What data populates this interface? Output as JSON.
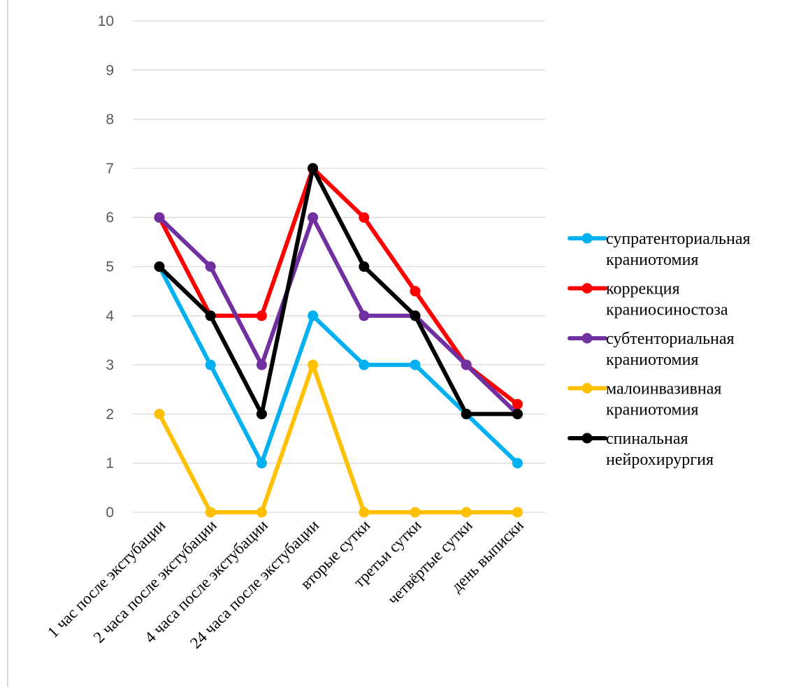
{
  "chart_data": {
    "type": "line",
    "title": "",
    "xlabel": "",
    "ylabel": "",
    "ylim": [
      0,
      10
    ],
    "yticks": [
      "0",
      "1",
      "2",
      "3",
      "4",
      "5",
      "6",
      "7",
      "8",
      "9",
      "10"
    ],
    "grid": true,
    "legend_position": "right",
    "categories": [
      "1 час после экстубации",
      "2 часа после экстубации",
      "4 часа после экстубации",
      "24 часа после экстубации",
      "вторые сутки",
      "третьи сутки",
      "четвёртые сутки",
      "день выписки"
    ],
    "series": [
      {
        "name": [
          "супратенториальная",
          "краниотомия"
        ],
        "color": "#00b0f0",
        "values": [
          5,
          3,
          1,
          4,
          3,
          3,
          2,
          1
        ]
      },
      {
        "name": [
          "коррекция",
          "краниосиностоза"
        ],
        "color": "#ff0000",
        "values": [
          6,
          4,
          4,
          7,
          6,
          4.5,
          3,
          2.2
        ]
      },
      {
        "name": [
          "субтенториальная",
          "краниотомия"
        ],
        "color": "#7030a0",
        "values": [
          6,
          5,
          3,
          6,
          4,
          4,
          3,
          2
        ]
      },
      {
        "name": [
          "малоинвазивная",
          "краниотомия"
        ],
        "color": "#ffc000",
        "values": [
          2,
          0,
          0,
          3,
          0,
          0,
          0,
          0
        ]
      },
      {
        "name": [
          "спинальная",
          "нейрохирургия"
        ],
        "color": "#000000",
        "values": [
          5,
          4,
          2,
          7,
          5,
          4,
          2,
          2
        ]
      }
    ]
  }
}
